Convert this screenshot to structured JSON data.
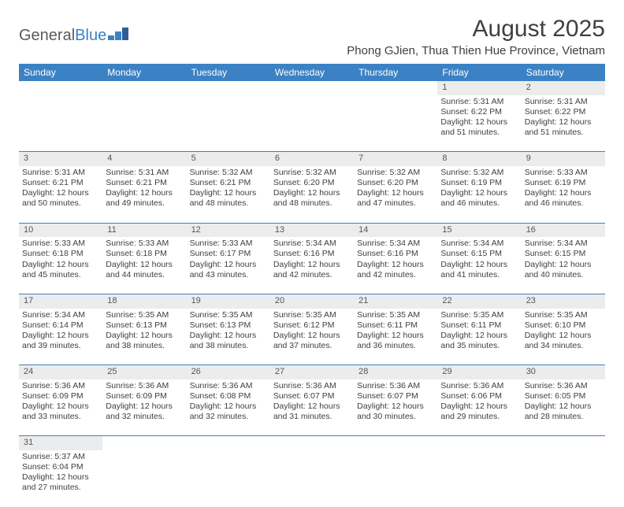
{
  "logo": {
    "part1": "General",
    "part2": "Blue"
  },
  "title": "August 2025",
  "location": "Phong GJien, Thua Thien Hue Province, Vietnam",
  "colors": {
    "header_bg": "#3b82c4",
    "header_text": "#ffffff",
    "daynum_bg": "#ececec",
    "text": "#404040",
    "row_border": "#3b82c4",
    "page_bg": "#ffffff"
  },
  "fonts": {
    "title_size_pt": 22,
    "location_size_pt": 11,
    "weekday_size_pt": 9,
    "cell_size_pt": 8
  },
  "weekdays": [
    "Sunday",
    "Monday",
    "Tuesday",
    "Wednesday",
    "Thursday",
    "Friday",
    "Saturday"
  ],
  "weeks": [
    [
      null,
      null,
      null,
      null,
      null,
      {
        "d": "1",
        "sr": "Sunrise: 5:31 AM",
        "ss": "Sunset: 6:22 PM",
        "dl1": "Daylight: 12 hours",
        "dl2": "and 51 minutes."
      },
      {
        "d": "2",
        "sr": "Sunrise: 5:31 AM",
        "ss": "Sunset: 6:22 PM",
        "dl1": "Daylight: 12 hours",
        "dl2": "and 51 minutes."
      }
    ],
    [
      {
        "d": "3",
        "sr": "Sunrise: 5:31 AM",
        "ss": "Sunset: 6:21 PM",
        "dl1": "Daylight: 12 hours",
        "dl2": "and 50 minutes."
      },
      {
        "d": "4",
        "sr": "Sunrise: 5:31 AM",
        "ss": "Sunset: 6:21 PM",
        "dl1": "Daylight: 12 hours",
        "dl2": "and 49 minutes."
      },
      {
        "d": "5",
        "sr": "Sunrise: 5:32 AM",
        "ss": "Sunset: 6:21 PM",
        "dl1": "Daylight: 12 hours",
        "dl2": "and 48 minutes."
      },
      {
        "d": "6",
        "sr": "Sunrise: 5:32 AM",
        "ss": "Sunset: 6:20 PM",
        "dl1": "Daylight: 12 hours",
        "dl2": "and 48 minutes."
      },
      {
        "d": "7",
        "sr": "Sunrise: 5:32 AM",
        "ss": "Sunset: 6:20 PM",
        "dl1": "Daylight: 12 hours",
        "dl2": "and 47 minutes."
      },
      {
        "d": "8",
        "sr": "Sunrise: 5:32 AM",
        "ss": "Sunset: 6:19 PM",
        "dl1": "Daylight: 12 hours",
        "dl2": "and 46 minutes."
      },
      {
        "d": "9",
        "sr": "Sunrise: 5:33 AM",
        "ss": "Sunset: 6:19 PM",
        "dl1": "Daylight: 12 hours",
        "dl2": "and 46 minutes."
      }
    ],
    [
      {
        "d": "10",
        "sr": "Sunrise: 5:33 AM",
        "ss": "Sunset: 6:18 PM",
        "dl1": "Daylight: 12 hours",
        "dl2": "and 45 minutes."
      },
      {
        "d": "11",
        "sr": "Sunrise: 5:33 AM",
        "ss": "Sunset: 6:18 PM",
        "dl1": "Daylight: 12 hours",
        "dl2": "and 44 minutes."
      },
      {
        "d": "12",
        "sr": "Sunrise: 5:33 AM",
        "ss": "Sunset: 6:17 PM",
        "dl1": "Daylight: 12 hours",
        "dl2": "and 43 minutes."
      },
      {
        "d": "13",
        "sr": "Sunrise: 5:34 AM",
        "ss": "Sunset: 6:16 PM",
        "dl1": "Daylight: 12 hours",
        "dl2": "and 42 minutes."
      },
      {
        "d": "14",
        "sr": "Sunrise: 5:34 AM",
        "ss": "Sunset: 6:16 PM",
        "dl1": "Daylight: 12 hours",
        "dl2": "and 42 minutes."
      },
      {
        "d": "15",
        "sr": "Sunrise: 5:34 AM",
        "ss": "Sunset: 6:15 PM",
        "dl1": "Daylight: 12 hours",
        "dl2": "and 41 minutes."
      },
      {
        "d": "16",
        "sr": "Sunrise: 5:34 AM",
        "ss": "Sunset: 6:15 PM",
        "dl1": "Daylight: 12 hours",
        "dl2": "and 40 minutes."
      }
    ],
    [
      {
        "d": "17",
        "sr": "Sunrise: 5:34 AM",
        "ss": "Sunset: 6:14 PM",
        "dl1": "Daylight: 12 hours",
        "dl2": "and 39 minutes."
      },
      {
        "d": "18",
        "sr": "Sunrise: 5:35 AM",
        "ss": "Sunset: 6:13 PM",
        "dl1": "Daylight: 12 hours",
        "dl2": "and 38 minutes."
      },
      {
        "d": "19",
        "sr": "Sunrise: 5:35 AM",
        "ss": "Sunset: 6:13 PM",
        "dl1": "Daylight: 12 hours",
        "dl2": "and 38 minutes."
      },
      {
        "d": "20",
        "sr": "Sunrise: 5:35 AM",
        "ss": "Sunset: 6:12 PM",
        "dl1": "Daylight: 12 hours",
        "dl2": "and 37 minutes."
      },
      {
        "d": "21",
        "sr": "Sunrise: 5:35 AM",
        "ss": "Sunset: 6:11 PM",
        "dl1": "Daylight: 12 hours",
        "dl2": "and 36 minutes."
      },
      {
        "d": "22",
        "sr": "Sunrise: 5:35 AM",
        "ss": "Sunset: 6:11 PM",
        "dl1": "Daylight: 12 hours",
        "dl2": "and 35 minutes."
      },
      {
        "d": "23",
        "sr": "Sunrise: 5:35 AM",
        "ss": "Sunset: 6:10 PM",
        "dl1": "Daylight: 12 hours",
        "dl2": "and 34 minutes."
      }
    ],
    [
      {
        "d": "24",
        "sr": "Sunrise: 5:36 AM",
        "ss": "Sunset: 6:09 PM",
        "dl1": "Daylight: 12 hours",
        "dl2": "and 33 minutes."
      },
      {
        "d": "25",
        "sr": "Sunrise: 5:36 AM",
        "ss": "Sunset: 6:09 PM",
        "dl1": "Daylight: 12 hours",
        "dl2": "and 32 minutes."
      },
      {
        "d": "26",
        "sr": "Sunrise: 5:36 AM",
        "ss": "Sunset: 6:08 PM",
        "dl1": "Daylight: 12 hours",
        "dl2": "and 32 minutes."
      },
      {
        "d": "27",
        "sr": "Sunrise: 5:36 AM",
        "ss": "Sunset: 6:07 PM",
        "dl1": "Daylight: 12 hours",
        "dl2": "and 31 minutes."
      },
      {
        "d": "28",
        "sr": "Sunrise: 5:36 AM",
        "ss": "Sunset: 6:07 PM",
        "dl1": "Daylight: 12 hours",
        "dl2": "and 30 minutes."
      },
      {
        "d": "29",
        "sr": "Sunrise: 5:36 AM",
        "ss": "Sunset: 6:06 PM",
        "dl1": "Daylight: 12 hours",
        "dl2": "and 29 minutes."
      },
      {
        "d": "30",
        "sr": "Sunrise: 5:36 AM",
        "ss": "Sunset: 6:05 PM",
        "dl1": "Daylight: 12 hours",
        "dl2": "and 28 minutes."
      }
    ],
    [
      {
        "d": "31",
        "sr": "Sunrise: 5:37 AM",
        "ss": "Sunset: 6:04 PM",
        "dl1": "Daylight: 12 hours",
        "dl2": "and 27 minutes."
      },
      null,
      null,
      null,
      null,
      null,
      null
    ]
  ]
}
